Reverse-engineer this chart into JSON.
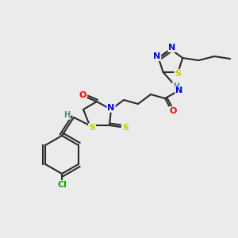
{
  "bg_color": "#ebebeb",
  "bond_color": "#2a2a2a",
  "atom_colors": {
    "N": "#0000e0",
    "O": "#ff0000",
    "S": "#cccc00",
    "Cl": "#00aa00",
    "H": "#409090",
    "C": "#2a2a2a"
  }
}
